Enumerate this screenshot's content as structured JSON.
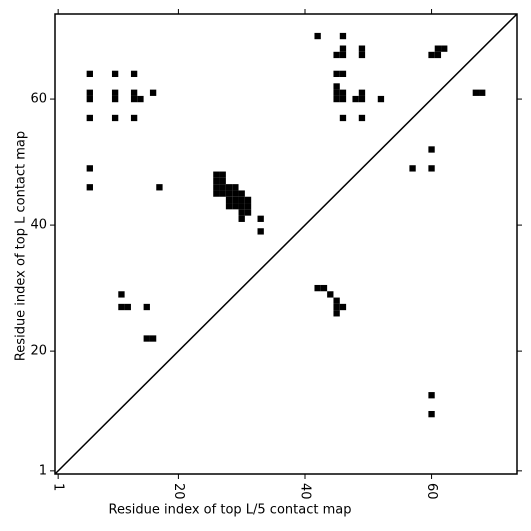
{
  "chart_data": {
    "type": "scatter",
    "xlabel": "Residue index of top L/5 contact map",
    "ylabel": "Residue index of top L contact map",
    "x": [
      6,
      6,
      6,
      6,
      6,
      6,
      10,
      10,
      10,
      10,
      13,
      13,
      13,
      13,
      14,
      16,
      17,
      26,
      26,
      26,
      26,
      27,
      27,
      27,
      27,
      28,
      28,
      28,
      28,
      29,
      29,
      29,
      29,
      30,
      30,
      30,
      30,
      30,
      31,
      31,
      31,
      33,
      33,
      11,
      11,
      12,
      15,
      15,
      16,
      42,
      46,
      46,
      45,
      46,
      49,
      49,
      45,
      46,
      45,
      45,
      45,
      46,
      46,
      48,
      49,
      49,
      52,
      46,
      49,
      60,
      61,
      61,
      62,
      67,
      68,
      60,
      57,
      60,
      42,
      43,
      44,
      45,
      45,
      45,
      46,
      60,
      60
    ],
    "y": [
      64,
      61,
      60,
      57,
      49,
      46,
      64,
      61,
      60,
      57,
      64,
      61,
      60,
      57,
      60,
      61,
      46,
      45,
      46,
      47,
      48,
      45,
      46,
      47,
      48,
      43,
      44,
      45,
      46,
      43,
      44,
      45,
      46,
      41,
      42,
      43,
      44,
      45,
      42,
      43,
      44,
      41,
      39,
      29,
      27,
      27,
      27,
      22,
      22,
      70,
      70,
      68,
      67,
      67,
      68,
      67,
      64,
      64,
      62,
      61,
      60,
      61,
      60,
      60,
      60,
      61,
      60,
      57,
      57,
      67,
      67,
      68,
      68,
      61,
      61,
      52,
      49,
      49,
      30,
      30,
      29,
      28,
      27,
      26,
      27,
      13,
      10
    ],
    "color": "#000000",
    "xlim": [
      0.5,
      73.5
    ],
    "ylim": [
      0.5,
      73.5
    ],
    "xticks": [
      1,
      20,
      40,
      60
    ],
    "yticks": [
      1,
      20,
      40,
      60
    ],
    "diagonal": true
  }
}
